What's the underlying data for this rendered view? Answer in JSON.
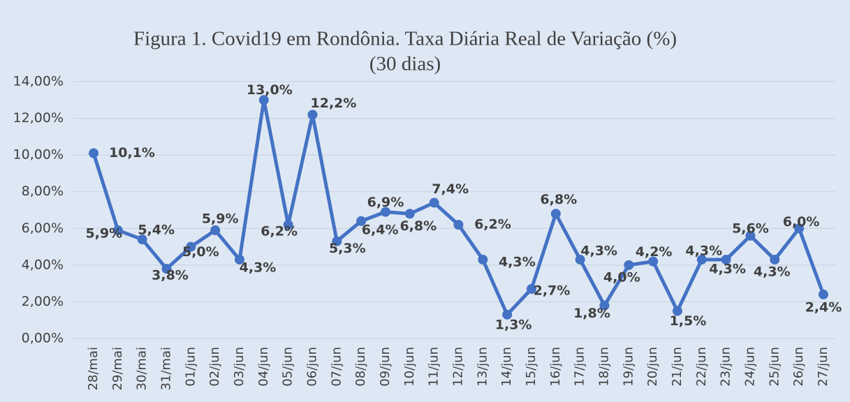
{
  "chart_data": {
    "type": "line",
    "title": [
      "Figura 1. Covid19 em Rondônia. Taxa Diária Real de Variação (%)",
      "(30 dias)"
    ],
    "categories": [
      "28/mai",
      "29/mai",
      "30/mai",
      "31/mai",
      "01/jun",
      "02/jun",
      "03/jun",
      "04/jun",
      "05/jun",
      "06/jun",
      "07/jun",
      "08/jun",
      "09/jun",
      "10/jun",
      "11/jun",
      "12/jun",
      "13/jun",
      "14/jun",
      "15/jun",
      "16/jun",
      "17/jun",
      "18/jun",
      "19/jun",
      "20/jun",
      "21/jun",
      "22/jun",
      "23/jun",
      "24/jun",
      "25/jun",
      "26/jun",
      "27/jun"
    ],
    "values": [
      10.1,
      5.9,
      5.4,
      3.8,
      5.0,
      5.9,
      4.3,
      13.0,
      6.2,
      12.2,
      5.3,
      6.4,
      6.9,
      6.8,
      7.4,
      6.2,
      4.3,
      1.3,
      2.7,
      6.8,
      4.3,
      1.8,
      4.0,
      4.2,
      1.5,
      4.3,
      4.3,
      5.6,
      4.3,
      6.0,
      2.4
    ],
    "value_labels": [
      "10,1%",
      "5,9%",
      "5,4%",
      "3,8%",
      "5,0%",
      "5,9%",
      "4,3%",
      "13,0%",
      "6,2%",
      "12,2%",
      "5,3%",
      "6,4%",
      "6,9%",
      "6,8%",
      "7,4%",
      "6,2%",
      "4,3%",
      "1,3%",
      "2,7%",
      "6,8%",
      "4,3%",
      "1,8%",
      "4,0%",
      "4,2%",
      "1,5%",
      "4,3%",
      "4,3%",
      "5,6%",
      "4,3%",
      "6,0%",
      "2,4%"
    ],
    "color": "#4472c4",
    "ylim": [
      0,
      14
    ],
    "yticks": [
      {
        "value": 0,
        "label": "0,00%"
      },
      {
        "value": 2,
        "label": "2,00%"
      },
      {
        "value": 4,
        "label": "4,00%"
      },
      {
        "value": 6,
        "label": "6,00%"
      },
      {
        "value": 8,
        "label": "8,00%"
      },
      {
        "value": 10,
        "label": "10,00%"
      },
      {
        "value": 12,
        "label": "12,00%"
      },
      {
        "value": 14,
        "label": "14,00%"
      }
    ],
    "grid": true
  }
}
